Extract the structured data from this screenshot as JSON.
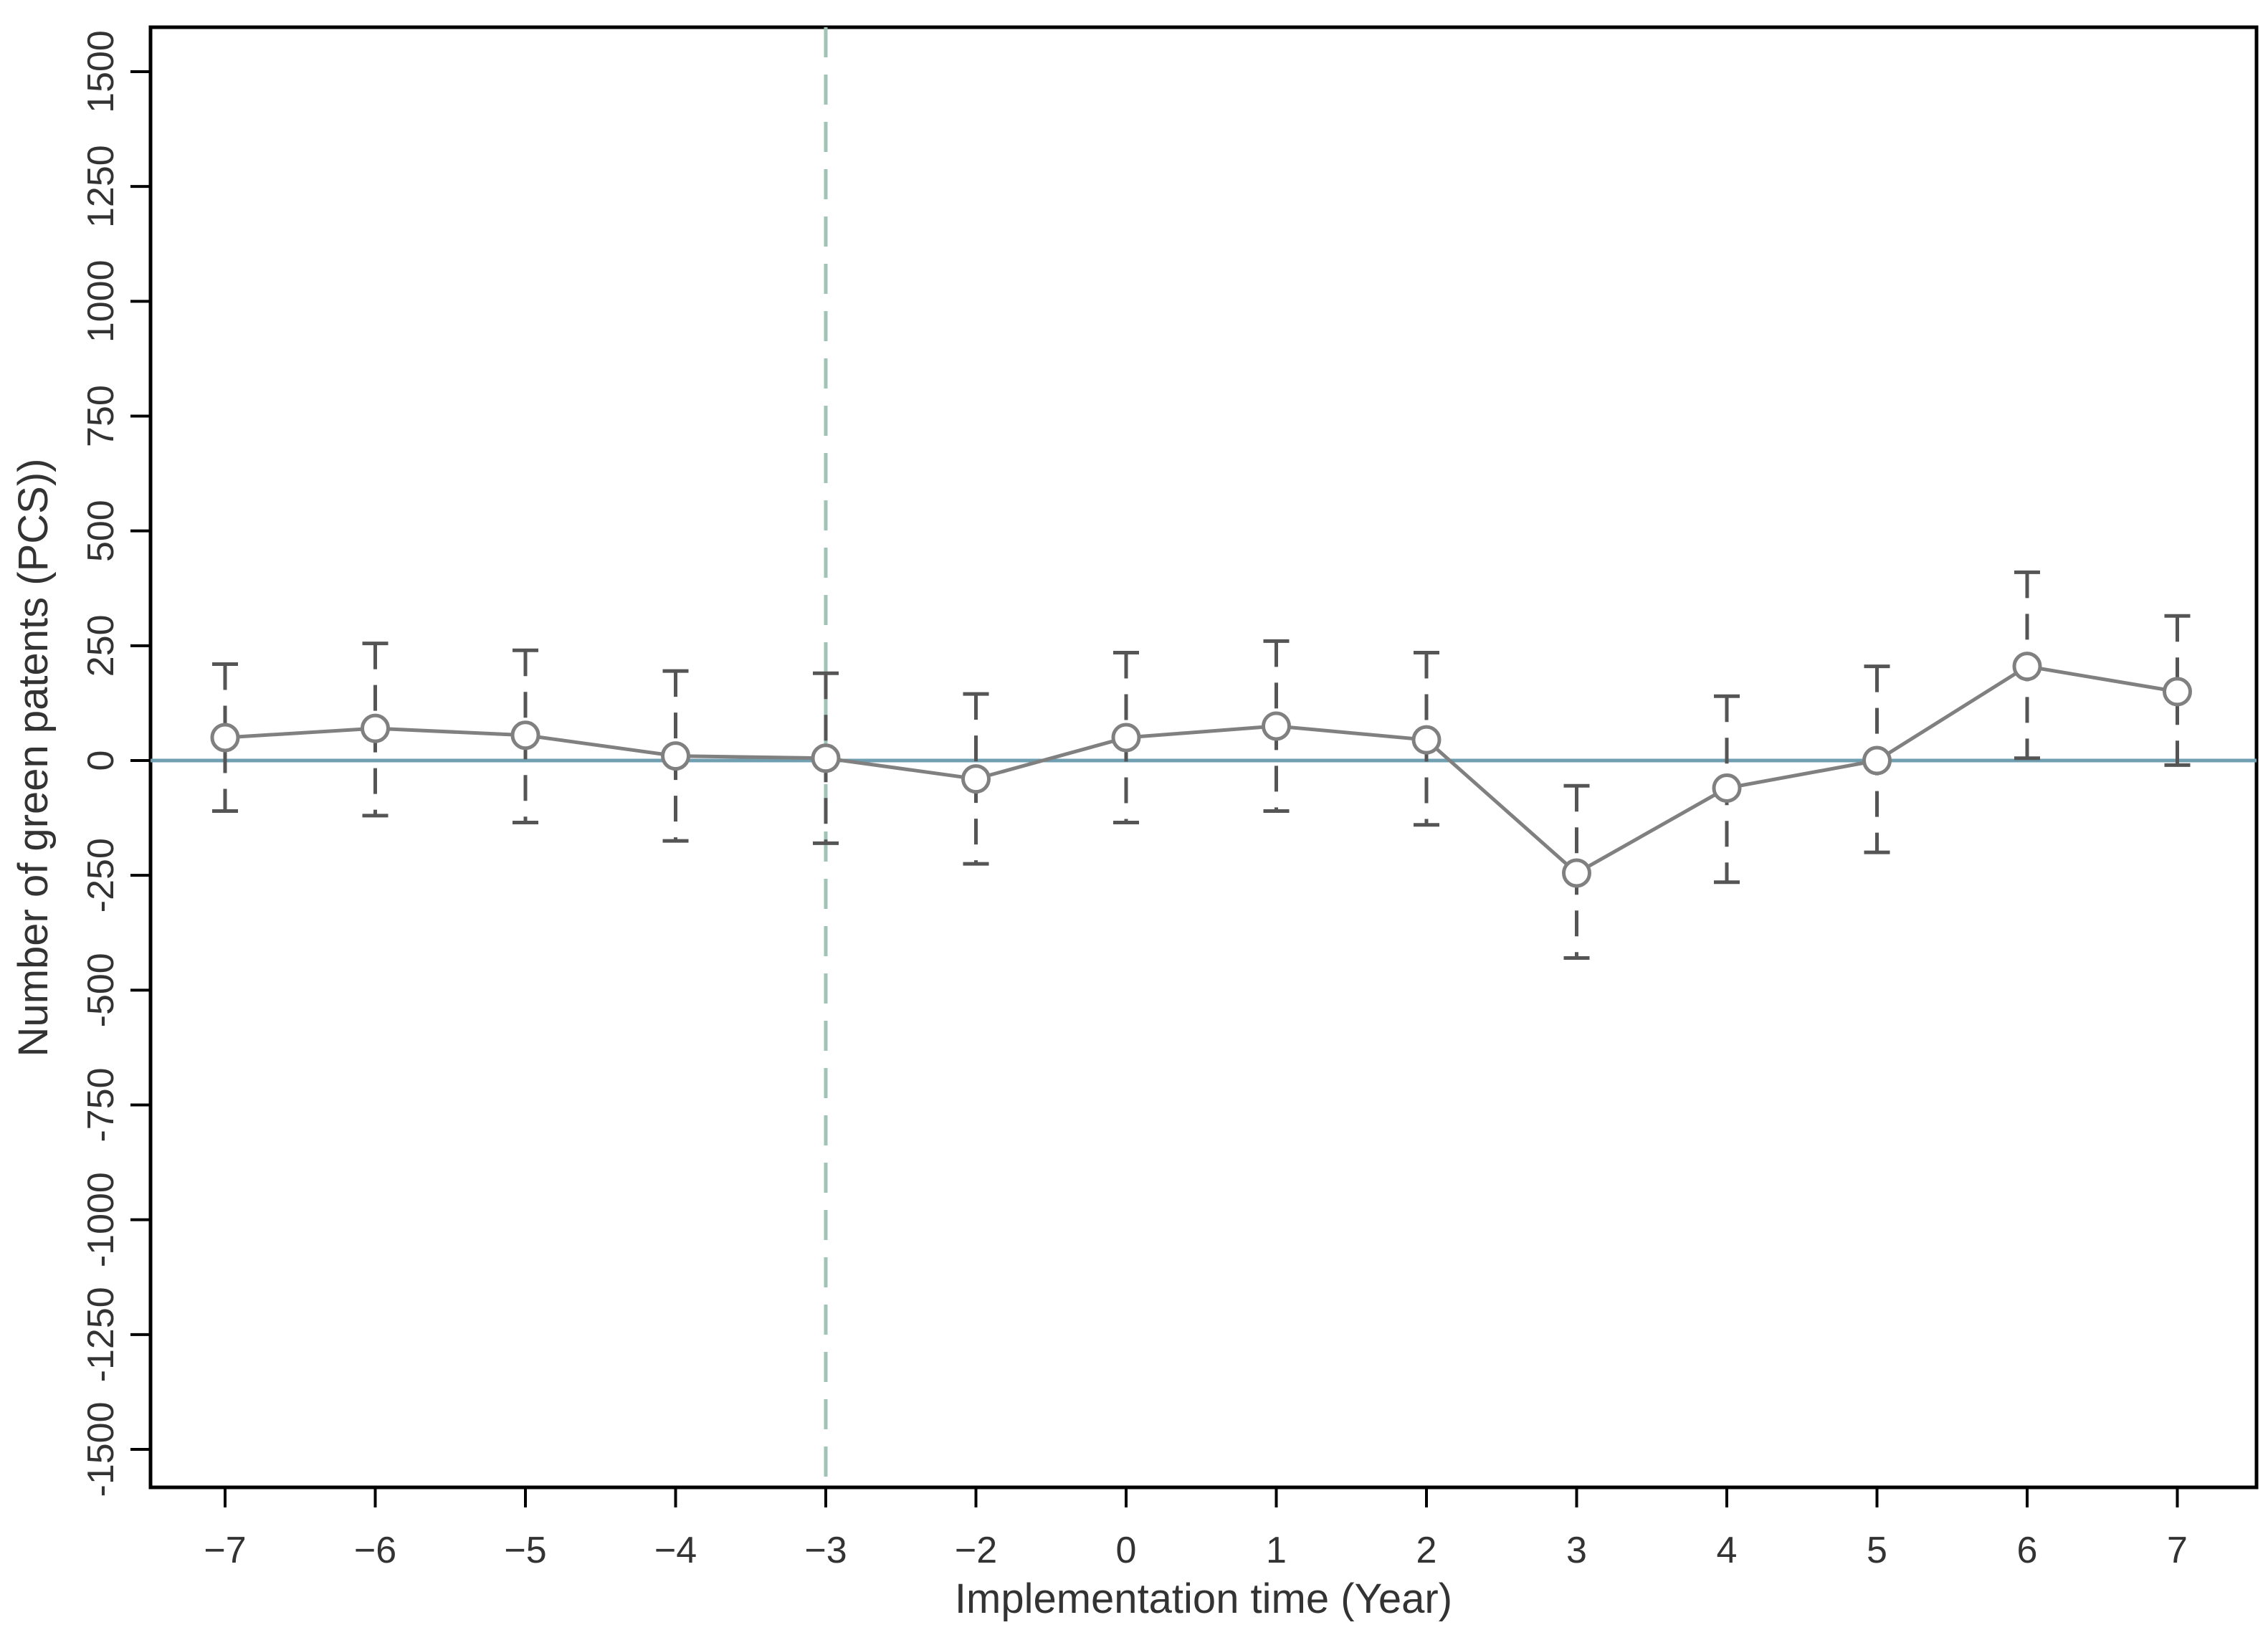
{
  "chart_data": {
    "type": "line",
    "xlabel": "Implementation time (Year)",
    "ylabel": "Number of green patents (PCS))",
    "categories": [
      "−7",
      "−6",
      "−5",
      "−4",
      "−3",
      "−2",
      "0",
      "1",
      "2",
      "3",
      "4",
      "5",
      "6",
      "7"
    ],
    "series": [
      {
        "values": [
          50,
          70,
          55,
          10,
          5,
          -40,
          50,
          75,
          45,
          -245,
          -60,
          0,
          205,
          150
        ],
        "upper": [
          210,
          255,
          240,
          195,
          190,
          145,
          235,
          260,
          235,
          -55,
          140,
          205,
          410,
          315
        ],
        "lower": [
          -110,
          -120,
          -135,
          -175,
          -180,
          -225,
          -135,
          -110,
          -140,
          -430,
          -265,
          -200,
          5,
          -10
        ]
      }
    ],
    "ylim": [
      -1580,
      1580
    ],
    "yticks": [
      -1500,
      -1250,
      -1000,
      -750,
      -500,
      -250,
      0,
      250,
      500,
      750,
      1000,
      1250,
      1500
    ],
    "ytick_labels": [
      "-1500",
      "-1250",
      "-1000",
      "-750",
      "-500",
      "-250",
      "0",
      "250",
      "500",
      "750",
      "1000",
      "1250",
      "1500"
    ],
    "reference_line_y": 0,
    "reference_line_x_category": "−3",
    "grid": false,
    "colors": {
      "series": "#808080",
      "error_bars": "#555555",
      "zero_line": "#6f9fb0",
      "vertical_line": "#9fc4b4",
      "axis": "#000000"
    }
  }
}
